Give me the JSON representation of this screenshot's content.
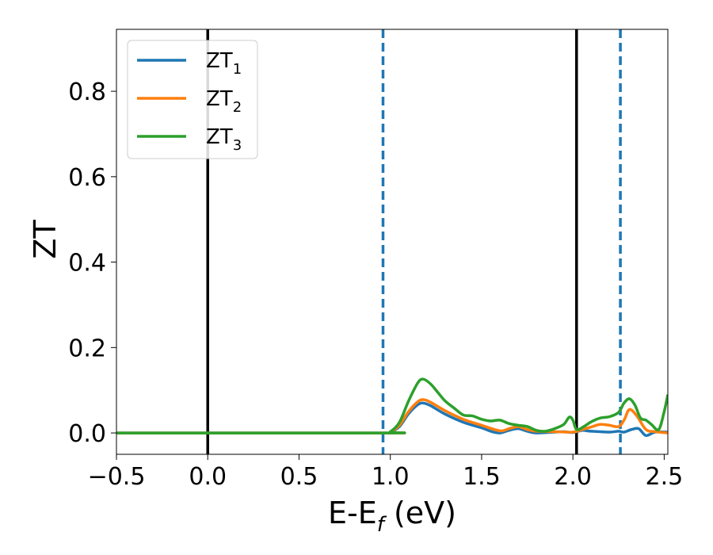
{
  "chart_data": {
    "type": "line",
    "xlabel": {
      "main": "E-E",
      "sub": "f",
      "tail": " (eV)"
    },
    "ylabel": "ZT",
    "xlim": [
      -0.5,
      2.52
    ],
    "ylim": [
      -0.05,
      0.945
    ],
    "xticks": [
      -0.5,
      0.0,
      0.5,
      1.0,
      1.5,
      2.0,
      2.5
    ],
    "xtick_labels": [
      "−0.5",
      "0.0",
      "0.5",
      "1.0",
      "1.5",
      "2.0",
      "2.5"
    ],
    "yticks": [
      0.0,
      0.2,
      0.4,
      0.6,
      0.8
    ],
    "ytick_labels": [
      "0.0",
      "0.2",
      "0.4",
      "0.6",
      "0.8"
    ],
    "grid": false,
    "legend_position": "top-left",
    "vertical_lines": [
      {
        "x": 0.0,
        "style": "solid",
        "color": "#000000"
      },
      {
        "x": 2.02,
        "style": "solid",
        "color": "#000000"
      },
      {
        "x": 0.96,
        "style": "dashed",
        "color": "#1f77b4"
      },
      {
        "x": 2.26,
        "style": "dashed",
        "color": "#1f77b4"
      }
    ],
    "series": [
      {
        "name": "ZT",
        "sub": "1",
        "color": "#1f77b4",
        "points": [
          [
            -0.5,
            0.0
          ],
          [
            0.96,
            0.0
          ],
          [
            1.0,
            0.002
          ],
          [
            1.05,
            0.015
          ],
          [
            1.1,
            0.045
          ],
          [
            1.15,
            0.066
          ],
          [
            1.18,
            0.07
          ],
          [
            1.22,
            0.064
          ],
          [
            1.3,
            0.044
          ],
          [
            1.4,
            0.025
          ],
          [
            1.5,
            0.012
          ],
          [
            1.55,
            0.004
          ],
          [
            1.6,
            0.0
          ],
          [
            1.65,
            0.006
          ],
          [
            1.7,
            0.01
          ],
          [
            1.75,
            0.004
          ],
          [
            1.8,
            0.0
          ],
          [
            1.9,
            0.002
          ],
          [
            1.95,
            0.003
          ],
          [
            2.0,
            0.001
          ],
          [
            2.05,
            0.006
          ],
          [
            2.1,
            0.004
          ],
          [
            2.2,
            0.002
          ],
          [
            2.25,
            0.004
          ],
          [
            2.28,
            0.002
          ],
          [
            2.32,
            0.008
          ],
          [
            2.36,
            0.01
          ],
          [
            2.4,
            -0.006
          ],
          [
            2.45,
            0.002
          ],
          [
            2.52,
            0.002
          ]
        ]
      },
      {
        "name": "ZT",
        "sub": "2",
        "color": "#ff7f0e",
        "points": [
          [
            -0.5,
            0.0
          ],
          [
            0.96,
            0.0
          ],
          [
            1.0,
            0.002
          ],
          [
            1.05,
            0.018
          ],
          [
            1.1,
            0.05
          ],
          [
            1.15,
            0.073
          ],
          [
            1.18,
            0.078
          ],
          [
            1.22,
            0.072
          ],
          [
            1.3,
            0.052
          ],
          [
            1.4,
            0.032
          ],
          [
            1.5,
            0.018
          ],
          [
            1.6,
            0.005
          ],
          [
            1.65,
            0.01
          ],
          [
            1.7,
            0.015
          ],
          [
            1.75,
            0.008
          ],
          [
            1.8,
            0.004
          ],
          [
            1.9,
            0.003
          ],
          [
            2.0,
            0.002
          ],
          [
            2.05,
            0.008
          ],
          [
            2.1,
            0.014
          ],
          [
            2.15,
            0.02
          ],
          [
            2.2,
            0.018
          ],
          [
            2.25,
            0.015
          ],
          [
            2.28,
            0.03
          ],
          [
            2.31,
            0.055
          ],
          [
            2.35,
            0.04
          ],
          [
            2.4,
            0.008
          ],
          [
            2.45,
            0.003
          ],
          [
            2.52,
            0.0
          ]
        ]
      },
      {
        "name": "ZT",
        "sub": "3",
        "color": "#2ca02c",
        "points": [
          [
            -0.5,
            0.0
          ],
          [
            0.96,
            0.0
          ],
          [
            1.0,
            0.003
          ],
          [
            1.05,
            0.025
          ],
          [
            1.1,
            0.075
          ],
          [
            1.15,
            0.117
          ],
          [
            1.18,
            0.126
          ],
          [
            1.22,
            0.115
          ],
          [
            1.26,
            0.095
          ],
          [
            1.3,
            0.075
          ],
          [
            1.35,
            0.058
          ],
          [
            1.4,
            0.042
          ],
          [
            1.45,
            0.04
          ],
          [
            1.5,
            0.032
          ],
          [
            1.55,
            0.028
          ],
          [
            1.6,
            0.03
          ],
          [
            1.65,
            0.022
          ],
          [
            1.7,
            0.018
          ],
          [
            1.75,
            0.015
          ],
          [
            1.8,
            0.006
          ],
          [
            1.85,
            0.004
          ],
          [
            1.9,
            0.01
          ],
          [
            1.95,
            0.02
          ],
          [
            1.98,
            0.037
          ],
          [
            2.0,
            0.03
          ],
          [
            2.02,
            0.008
          ],
          [
            2.06,
            0.015
          ],
          [
            2.1,
            0.026
          ],
          [
            2.15,
            0.035
          ],
          [
            2.2,
            0.038
          ],
          [
            2.25,
            0.048
          ],
          [
            2.28,
            0.07
          ],
          [
            2.31,
            0.08
          ],
          [
            2.34,
            0.065
          ],
          [
            2.37,
            0.035
          ],
          [
            2.4,
            0.03
          ],
          [
            2.43,
            0.02
          ],
          [
            2.47,
            0.008
          ],
          [
            2.5,
            0.05
          ],
          [
            2.52,
            0.09
          ]
        ]
      }
    ]
  }
}
